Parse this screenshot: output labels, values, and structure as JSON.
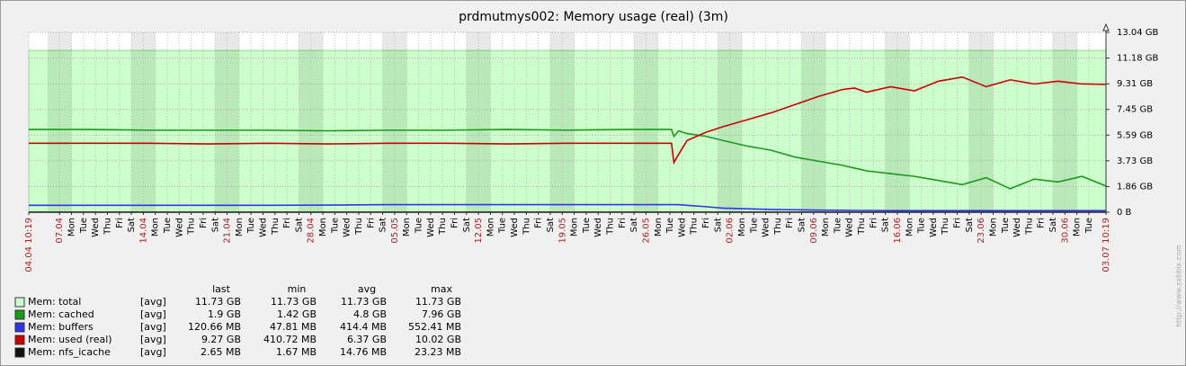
{
  "chart_data": {
    "type": "line",
    "title": "prdmutmys002: Memory usage (real) (3m)",
    "watermark": "http://www.zabbix.com",
    "xlim": [
      0,
      90
    ],
    "xticks_major": [
      {
        "value": 0,
        "label": "04.04 10:19"
      },
      {
        "value": 2.57,
        "label": "07.04"
      },
      {
        "value": 9.57,
        "label": "14.04"
      },
      {
        "value": 16.57,
        "label": "21.04"
      },
      {
        "value": 23.57,
        "label": "28.04"
      },
      {
        "value": 30.57,
        "label": "05.05"
      },
      {
        "value": 37.57,
        "label": "12.05"
      },
      {
        "value": 44.57,
        "label": "19.05"
      },
      {
        "value": 51.57,
        "label": "26.05"
      },
      {
        "value": 58.57,
        "label": "02.06"
      },
      {
        "value": 65.57,
        "label": "09.06"
      },
      {
        "value": 72.57,
        "label": "16.06"
      },
      {
        "value": 79.57,
        "label": "23.06"
      },
      {
        "value": 86.57,
        "label": "30.06"
      },
      {
        "value": 90,
        "label": "03.07 10:19"
      }
    ],
    "xticks": [
      {
        "value": 3.57,
        "label": "Mon"
      },
      {
        "value": 4.57,
        "label": "Tue"
      },
      {
        "value": 5.57,
        "label": "Wed"
      },
      {
        "value": 6.57,
        "label": "Thu"
      },
      {
        "value": 7.57,
        "label": "Fri"
      },
      {
        "value": 8.57,
        "label": "Sat"
      },
      {
        "value": 10.57,
        "label": "Mon"
      },
      {
        "value": 11.57,
        "label": "Tue"
      },
      {
        "value": 12.57,
        "label": "Wed"
      },
      {
        "value": 13.57,
        "label": "Thu"
      },
      {
        "value": 14.57,
        "label": "Fri"
      },
      {
        "value": 15.57,
        "label": "Sat"
      },
      {
        "value": 17.57,
        "label": "Mon"
      },
      {
        "value": 18.57,
        "label": "Tue"
      },
      {
        "value": 19.57,
        "label": "Wed"
      },
      {
        "value": 20.57,
        "label": "Thu"
      },
      {
        "value": 21.57,
        "label": "Fri"
      },
      {
        "value": 22.57,
        "label": "Sat"
      },
      {
        "value": 24.57,
        "label": "Mon"
      },
      {
        "value": 25.57,
        "label": "Tue"
      },
      {
        "value": 26.57,
        "label": "Wed"
      },
      {
        "value": 27.57,
        "label": "Thu"
      },
      {
        "value": 28.57,
        "label": "Fri"
      },
      {
        "value": 29.57,
        "label": "Sat"
      },
      {
        "value": 31.57,
        "label": "Mon"
      },
      {
        "value": 32.57,
        "label": "Tue"
      },
      {
        "value": 33.57,
        "label": "Wed"
      },
      {
        "value": 34.57,
        "label": "Thu"
      },
      {
        "value": 35.57,
        "label": "Fri"
      },
      {
        "value": 36.57,
        "label": "Sat"
      },
      {
        "value": 38.57,
        "label": "Mon"
      },
      {
        "value": 39.57,
        "label": "Tue"
      },
      {
        "value": 40.57,
        "label": "Wed"
      },
      {
        "value": 41.57,
        "label": "Thu"
      },
      {
        "value": 42.57,
        "label": "Fri"
      },
      {
        "value": 43.57,
        "label": "Sat"
      },
      {
        "value": 45.57,
        "label": "Mon"
      },
      {
        "value": 46.57,
        "label": "Tue"
      },
      {
        "value": 47.57,
        "label": "Wed"
      },
      {
        "value": 48.57,
        "label": "Thu"
      },
      {
        "value": 49.57,
        "label": "Fri"
      },
      {
        "value": 50.57,
        "label": "Sat"
      },
      {
        "value": 52.57,
        "label": "Mon"
      },
      {
        "value": 53.57,
        "label": "Tue"
      },
      {
        "value": 54.57,
        "label": "Wed"
      },
      {
        "value": 55.57,
        "label": "Thu"
      },
      {
        "value": 56.57,
        "label": "Fri"
      },
      {
        "value": 57.57,
        "label": "Sat"
      },
      {
        "value": 59.57,
        "label": "Mon"
      },
      {
        "value": 60.57,
        "label": "Tue"
      },
      {
        "value": 61.57,
        "label": "Wed"
      },
      {
        "value": 62.57,
        "label": "Thu"
      },
      {
        "value": 63.57,
        "label": "Fri"
      },
      {
        "value": 64.57,
        "label": "Sat"
      },
      {
        "value": 66.57,
        "label": "Mon"
      },
      {
        "value": 67.57,
        "label": "Tue"
      },
      {
        "value": 68.57,
        "label": "Wed"
      },
      {
        "value": 69.57,
        "label": "Thu"
      },
      {
        "value": 70.57,
        "label": "Fri"
      },
      {
        "value": 71.57,
        "label": "Sat"
      },
      {
        "value": 73.57,
        "label": "Mon"
      },
      {
        "value": 74.57,
        "label": "Tue"
      },
      {
        "value": 75.57,
        "label": "Wed"
      },
      {
        "value": 76.57,
        "label": "Thu"
      },
      {
        "value": 77.57,
        "label": "Fri"
      },
      {
        "value": 78.57,
        "label": "Sat"
      },
      {
        "value": 80.57,
        "label": "Mon"
      },
      {
        "value": 81.57,
        "label": "Tue"
      },
      {
        "value": 82.57,
        "label": "Wed"
      },
      {
        "value": 83.57,
        "label": "Thu"
      },
      {
        "value": 84.57,
        "label": "Fri"
      },
      {
        "value": 85.57,
        "label": "Sat"
      },
      {
        "value": 87.57,
        "label": "Mon"
      },
      {
        "value": 88.57,
        "label": "Tue"
      }
    ],
    "ylim": [
      0,
      13.04
    ],
    "yticks": [
      {
        "value": 0,
        "label": "0 B"
      },
      {
        "value": 1.86,
        "label": "1.86 GB"
      },
      {
        "value": 3.73,
        "label": "3.73 GB"
      },
      {
        "value": 5.59,
        "label": "5.59 GB"
      },
      {
        "value": 7.45,
        "label": "7.45 GB"
      },
      {
        "value": 9.31,
        "label": "9.31 GB"
      },
      {
        "value": 11.18,
        "label": "11.18 GB"
      },
      {
        "value": 13.04,
        "label": "13.04 GB"
      }
    ],
    "grid": true,
    "major_label_color": "#aa2222",
    "stat_columns": [
      "last",
      "min",
      "avg",
      "max"
    ],
    "x": [
      0,
      5,
      10,
      15,
      20,
      25,
      30,
      35,
      40,
      45,
      50,
      53.7,
      53.9,
      54.3,
      55,
      56.6,
      58,
      60,
      62,
      64,
      66,
      68,
      69,
      70,
      72,
      74,
      76,
      78,
      80,
      82,
      84,
      86,
      88,
      90
    ],
    "series": [
      {
        "name": "Mem: total",
        "color": "#ccffcc",
        "draw_type": "filled",
        "function": "[avg]",
        "stats": [
          "11.73 GB",
          "11.73 GB",
          "11.73 GB",
          "11.73 GB"
        ],
        "values": [
          11.73,
          11.73,
          11.73,
          11.73,
          11.73,
          11.73,
          11.73,
          11.73,
          11.73,
          11.73,
          11.73,
          11.73,
          11.73,
          11.73,
          11.73,
          11.73,
          11.73,
          11.73,
          11.73,
          11.73,
          11.73,
          11.73,
          11.73,
          11.73,
          11.73,
          11.73,
          11.73,
          11.73,
          11.73,
          11.73,
          11.73,
          11.73,
          11.73,
          11.73
        ]
      },
      {
        "name": "Mem: cached",
        "color": "#1a9a1a",
        "draw_type": "line",
        "function": "[avg]",
        "stats": [
          "1.9 GB",
          "1.42 GB",
          "4.8 GB",
          "7.96 GB"
        ],
        "values": [
          6.0,
          6.0,
          5.95,
          5.95,
          5.95,
          5.9,
          5.95,
          5.95,
          6.0,
          5.95,
          6.0,
          6.0,
          5.5,
          5.9,
          5.7,
          5.5,
          5.2,
          4.8,
          4.5,
          4.0,
          3.7,
          3.4,
          3.2,
          3.0,
          2.8,
          2.6,
          2.3,
          2.0,
          2.5,
          1.7,
          2.4,
          2.2,
          2.6,
          1.9
        ]
      },
      {
        "name": "Mem: buffers",
        "color": "#3333ee",
        "draw_type": "line",
        "function": "[avg]",
        "stats": [
          "120.66 MB",
          "47.81 MB",
          "414.4 MB",
          "552.41 MB"
        ],
        "values": [
          0.5,
          0.5,
          0.5,
          0.5,
          0.5,
          0.52,
          0.55,
          0.55,
          0.55,
          0.55,
          0.55,
          0.55,
          0.55,
          0.55,
          0.5,
          0.4,
          0.3,
          0.25,
          0.2,
          0.18,
          0.15,
          0.14,
          0.13,
          0.13,
          0.12,
          0.12,
          0.12,
          0.12,
          0.12,
          0.12,
          0.12,
          0.12,
          0.12,
          0.12
        ]
      },
      {
        "name": "Mem: used (real)",
        "color": "#cc0000",
        "draw_type": "line",
        "function": "[avg]",
        "stats": [
          "9.27 GB",
          "410.72 MB",
          "6.37 GB",
          "10.02 GB"
        ],
        "values": [
          5.0,
          5.0,
          5.0,
          4.95,
          5.0,
          4.95,
          5.0,
          5.0,
          4.95,
          5.0,
          5.0,
          5.0,
          3.6,
          4.2,
          5.2,
          5.8,
          6.2,
          6.7,
          7.2,
          7.8,
          8.4,
          8.9,
          9.0,
          8.7,
          9.1,
          8.8,
          9.5,
          9.8,
          9.1,
          9.6,
          9.3,
          9.5,
          9.3,
          9.27
        ]
      },
      {
        "name": "Mem: nfs_icache",
        "color": "#111111",
        "draw_type": "line",
        "function": "[avg]",
        "stats": [
          "2.65 MB",
          "1.67 MB",
          "14.76 MB",
          "23.23 MB"
        ],
        "values": [
          0.003,
          0.003,
          0.003,
          0.003,
          0.003,
          0.003,
          0.003,
          0.003,
          0.003,
          0.003,
          0.003,
          0.003,
          0.003,
          0.003,
          0.003,
          0.003,
          0.003,
          0.003,
          0.003,
          0.003,
          0.003,
          0.003,
          0.003,
          0.003,
          0.003,
          0.003,
          0.003,
          0.003,
          0.003,
          0.003,
          0.003,
          0.003,
          0.003,
          0.003
        ]
      }
    ]
  }
}
